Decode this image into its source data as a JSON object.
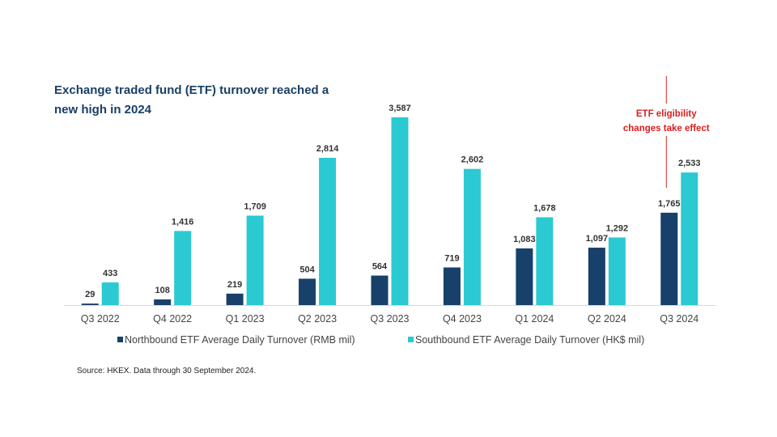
{
  "chart_data": {
    "type": "bar",
    "title": "Exchange traded fund (ETF) turnover reached a new high in 2024",
    "categories": [
      "Q3 2022",
      "Q4 2022",
      "Q1 2023",
      "Q2 2023",
      "Q3 2023",
      "Q4 2023",
      "Q1 2024",
      "Q2 2024",
      "Q3 2024"
    ],
    "series": [
      {
        "name": "Northbound ETF Average Daily Turnover (RMB mil)",
        "values": [
          29,
          108,
          219,
          504,
          564,
          719,
          1083,
          1097,
          1765
        ],
        "labels": [
          "29",
          "108",
          "219",
          "504",
          "564",
          "719",
          "1,083",
          "1,097",
          "1,765"
        ],
        "color": "#17406a"
      },
      {
        "name": "Southbound ETF Average Daily Turnover (HK$ mil)",
        "values": [
          433,
          1416,
          1709,
          2814,
          3587,
          2602,
          1678,
          1292,
          2533
        ],
        "labels": [
          "433",
          "1,416",
          "1,709",
          "2,814",
          "3,587",
          "2,602",
          "1,678",
          "1,292",
          "2,533"
        ],
        "color": "#2bc9d2"
      }
    ],
    "ylim": [
      0,
      3587
    ],
    "xlabel": "",
    "ylabel": "",
    "grid": false,
    "legend": "bottom",
    "annotation": {
      "category": "Q3 2024",
      "text_lines": [
        "ETF eligibility",
        "changes take effect"
      ],
      "color": "#d9201f"
    }
  },
  "source": "Source: HKEX. Data through 30 September 2024."
}
